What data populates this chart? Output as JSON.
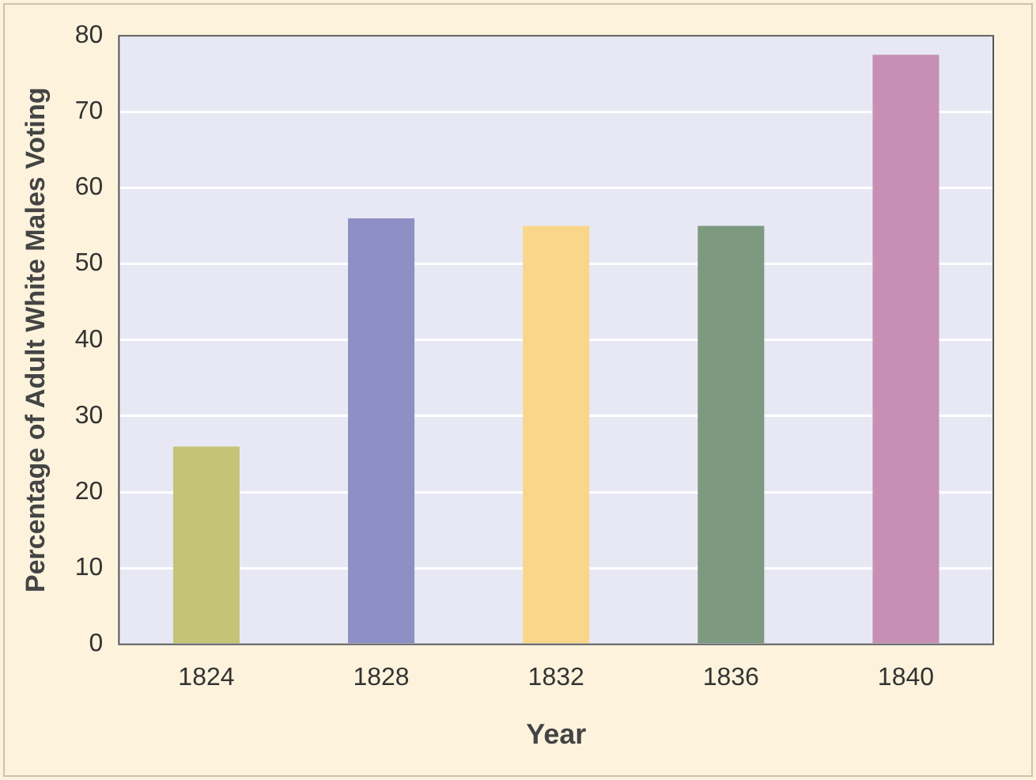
{
  "chart_data": {
    "type": "bar",
    "xlabel": "Year",
    "ylabel": "Percentage of Adult White Males Voting",
    "categories": [
      "1824",
      "1828",
      "1832",
      "1836",
      "1840"
    ],
    "values": [
      26,
      56,
      55,
      55,
      77.5
    ],
    "colors": [
      "#c4c476",
      "#8e8fc4",
      "#f9d68a",
      "#7d9a80",
      "#c78fb4"
    ],
    "ylim": [
      0,
      80
    ],
    "yticks": [
      0,
      10,
      20,
      30,
      40,
      50,
      60,
      70,
      80
    ],
    "grid": "y",
    "legend": false
  }
}
